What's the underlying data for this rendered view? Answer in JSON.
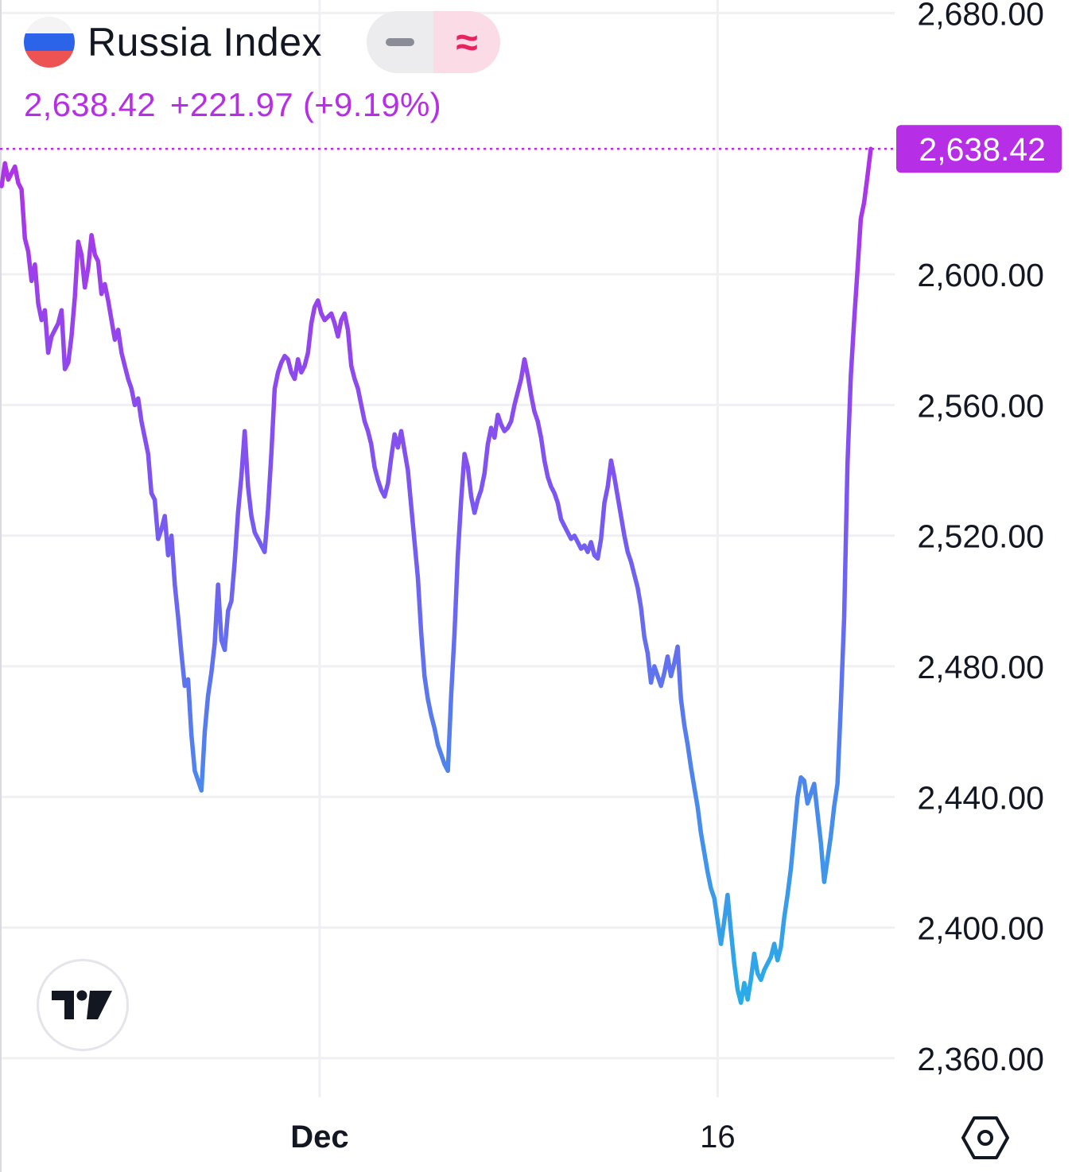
{
  "header": {
    "title": "Russia Index",
    "flag_icon": "russia-flag-icon",
    "toggle_line_icon": "minus-icon",
    "toggle_wave_icon": "approx-wave-icon",
    "price": "2,638.42",
    "change": "+221.97 (+9.19%)"
  },
  "colors": {
    "line_top": "#b62ee6",
    "line_mid": "#7a57f2",
    "line_bottom": "#27aee8",
    "badge": "#b62ee6",
    "text": "#131722",
    "grid": "#f0f0f3"
  },
  "chart_data": {
    "type": "line",
    "ylim": [
      2350,
      2684
    ],
    "y_ticks": [
      {
        "value": 2680,
        "label": "2,680.00"
      },
      {
        "value": 2600,
        "label": "2,600.00"
      },
      {
        "value": 2560,
        "label": "2,560.00"
      },
      {
        "value": 2520,
        "label": "2,520.00"
      },
      {
        "value": 2480,
        "label": "2,480.00"
      },
      {
        "value": 2440,
        "label": "2,440.00"
      },
      {
        "value": 2400,
        "label": "2,400.00"
      },
      {
        "value": 2360,
        "label": "2,360.00"
      }
    ],
    "x_ticks": [
      {
        "index": 95.5,
        "label": "Dec"
      },
      {
        "index": 215,
        "label": "16"
      }
    ],
    "last_value_label": "2,638.42",
    "last_value": 2638.42,
    "points": [
      2627,
      2634,
      2629,
      2631,
      2633,
      2628,
      2626,
      2611,
      2607,
      2598,
      2603,
      2591,
      2586,
      2589,
      2576,
      2581,
      2583,
      2585,
      2589,
      2571,
      2573,
      2581,
      2593,
      2610,
      2606,
      2596,
      2602,
      2612,
      2606,
      2604,
      2594,
      2597,
      2592,
      2586,
      2580,
      2583,
      2576,
      2572,
      2568,
      2565,
      2560,
      2562,
      2555,
      2550,
      2545,
      2533,
      2531,
      2519,
      2522,
      2526,
      2514,
      2520,
      2505,
      2495,
      2484,
      2474,
      2476,
      2459,
      2448,
      2445,
      2442,
      2460,
      2471,
      2478,
      2487,
      2505,
      2488,
      2485,
      2497,
      2500,
      2512,
      2527,
      2538,
      2552,
      2535,
      2526,
      2521,
      2519,
      2517,
      2515,
      2528,
      2545,
      2565,
      2570,
      2573,
      2575,
      2574,
      2570,
      2568,
      2574,
      2570,
      2572,
      2576,
      2585,
      2590,
      2592,
      2588,
      2586,
      2587,
      2588,
      2585,
      2581,
      2586,
      2588,
      2583,
      2572,
      2568,
      2565,
      2560,
      2555,
      2552,
      2548,
      2541,
      2537,
      2534,
      2532,
      2536,
      2544,
      2551,
      2547,
      2552,
      2546,
      2540,
      2529,
      2518,
      2507,
      2490,
      2477,
      2470,
      2465,
      2461,
      2456,
      2453,
      2450,
      2448,
      2471,
      2490,
      2514,
      2531,
      2545,
      2541,
      2532,
      2527,
      2531,
      2534,
      2539,
      2548,
      2553,
      2550,
      2557,
      2554,
      2552,
      2553,
      2555,
      2560,
      2564,
      2568,
      2574,
      2569,
      2563,
      2558,
      2555,
      2550,
      2543,
      2538,
      2535,
      2533,
      2530,
      2525,
      2523,
      2521,
      2519,
      2520,
      2518,
      2516,
      2517,
      2515,
      2518,
      2514,
      2513,
      2519,
      2530,
      2535,
      2543,
      2538,
      2532,
      2526,
      2520,
      2515,
      2512,
      2508,
      2504,
      2498,
      2489,
      2484,
      2475,
      2480,
      2477,
      2474,
      2478,
      2483,
      2477,
      2481,
      2486,
      2470,
      2462,
      2456,
      2449,
      2443,
      2437,
      2429,
      2423,
      2417,
      2412,
      2409,
      2402,
      2395,
      2402,
      2410,
      2399,
      2389,
      2381,
      2377,
      2383,
      2378,
      2384,
      2392,
      2386,
      2384,
      2387,
      2389,
      2391,
      2395,
      2390,
      2394,
      2403,
      2410,
      2418,
      2429,
      2440,
      2446,
      2445,
      2438,
      2441,
      2444,
      2435,
      2426,
      2414,
      2421,
      2428,
      2437,
      2444,
      2468,
      2495,
      2542,
      2569,
      2586,
      2601,
      2617,
      2622,
      2630,
      2638.42
    ]
  },
  "brand": {
    "logo_text": "TV"
  },
  "controls": {
    "settings_icon": "hexagon-settings-icon"
  }
}
